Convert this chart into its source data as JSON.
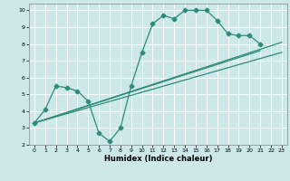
{
  "title": "",
  "xlabel": "Humidex (Indice chaleur)",
  "bg_color": "#cce8e8",
  "grid_color": "#ffffff",
  "line_color": "#2e8b7a",
  "xlim": [
    -0.5,
    23.5
  ],
  "ylim": [
    2,
    10.4
  ],
  "xticks": [
    0,
    1,
    2,
    3,
    4,
    5,
    6,
    7,
    8,
    9,
    10,
    11,
    12,
    13,
    14,
    15,
    16,
    17,
    18,
    19,
    20,
    21,
    22,
    23
  ],
  "yticks": [
    2,
    3,
    4,
    5,
    6,
    7,
    8,
    9,
    10
  ],
  "line1_x": [
    0,
    1,
    2,
    3,
    4,
    5,
    6,
    7,
    8,
    9,
    10,
    11,
    12,
    13,
    14,
    15,
    16,
    17,
    18,
    19,
    20,
    21
  ],
  "line1_y": [
    3.3,
    4.1,
    5.5,
    5.4,
    5.2,
    4.6,
    2.7,
    2.2,
    3.0,
    5.5,
    7.5,
    9.2,
    9.7,
    9.5,
    10.0,
    10.0,
    10.0,
    9.4,
    8.6,
    8.5,
    8.5,
    8.0
  ],
  "line2_x": [
    0,
    21
  ],
  "line2_y": [
    3.3,
    7.6
  ],
  "line3_x": [
    0,
    23
  ],
  "line3_y": [
    3.3,
    8.1
  ],
  "line4_x": [
    0,
    23
  ],
  "line4_y": [
    3.3,
    7.5
  ],
  "markersize": 2.5,
  "linewidth": 0.9
}
